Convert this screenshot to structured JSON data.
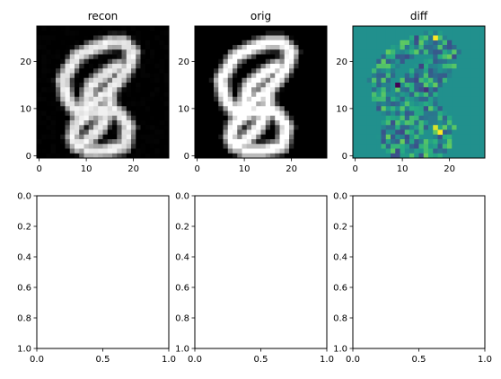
{
  "chart_data": [
    {
      "type": "heatmap",
      "title": "recon",
      "colormap": "gray",
      "image_size": [
        28,
        28
      ],
      "xlim": [
        -0.5,
        27.5
      ],
      "ylim": [
        27.5,
        -0.5
      ],
      "xticks": [
        0,
        10,
        20
      ],
      "yticks": [
        0,
        10,
        20
      ],
      "xtick_labels": [
        "0",
        "10",
        "20"
      ],
      "ytick_labels": [
        "0",
        "10",
        "20"
      ]
    },
    {
      "type": "heatmap",
      "title": "orig",
      "colormap": "gray",
      "image_size": [
        28,
        28
      ],
      "xlim": [
        -0.5,
        27.5
      ],
      "ylim": [
        27.5,
        -0.5
      ],
      "xticks": [
        0,
        10,
        20
      ],
      "yticks": [
        0,
        10,
        20
      ],
      "xtick_labels": [
        "0",
        "10",
        "20"
      ],
      "ytick_labels": [
        "0",
        "10",
        "20"
      ]
    },
    {
      "type": "heatmap",
      "title": "diff",
      "colormap": "viridis",
      "image_size": [
        28,
        28
      ],
      "xlim": [
        -0.5,
        27.5
      ],
      "ylim": [
        27.5,
        -0.5
      ],
      "xticks": [
        0,
        10,
        20
      ],
      "yticks": [
        0,
        10,
        20
      ],
      "xtick_labels": [
        "0",
        "10",
        "20"
      ],
      "ytick_labels": [
        "0",
        "10",
        "20"
      ]
    },
    {
      "type": "line",
      "title": "",
      "xlim": [
        0.0,
        1.0
      ],
      "ylim": [
        0.0,
        1.0
      ],
      "xtick_labels": [
        "0.0",
        "0.5",
        "1.0"
      ],
      "ytick_labels": [
        "0.0",
        "0.2",
        "0.4",
        "0.6",
        "0.8",
        "1.0"
      ],
      "series": []
    },
    {
      "type": "line",
      "title": "",
      "xlim": [
        0.0,
        1.0
      ],
      "ylim": [
        0.0,
        1.0
      ],
      "xtick_labels": [
        "0.0",
        "0.5",
        "1.0"
      ],
      "ytick_labels": [
        "0.0",
        "0.2",
        "0.4",
        "0.6",
        "0.8",
        "1.0"
      ],
      "series": []
    },
    {
      "type": "line",
      "title": "",
      "xlim": [
        0.0,
        1.0
      ],
      "ylim": [
        0.0,
        1.0
      ],
      "xtick_labels": [
        "0.0",
        "0.5",
        "1.0"
      ],
      "ytick_labels": [
        "0.0",
        "0.2",
        "0.4",
        "0.6",
        "0.8",
        "1.0"
      ],
      "series": []
    }
  ]
}
